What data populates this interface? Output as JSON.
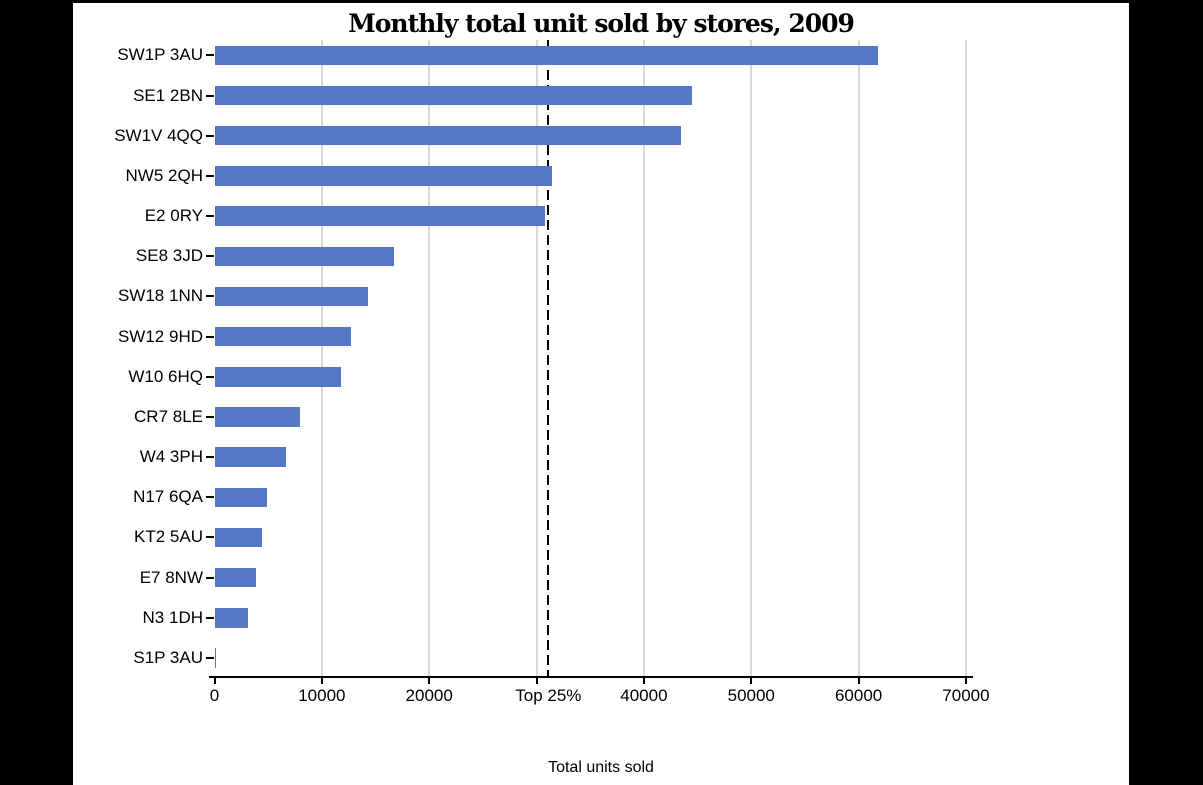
{
  "window": {
    "background": "#ffffff",
    "frame_color": "#000000"
  },
  "chart_data": {
    "type": "bar",
    "orientation": "horizontal",
    "title": "Monthly total unit sold by stores, 2009",
    "xlabel": "Total units sold",
    "categories": [
      "SW1P 3AU",
      "SE1 2BN",
      "SW1V 4QQ",
      "NW5 2QH",
      "E2 0RY",
      "SE8 3JD",
      "SW18 1NN",
      "SW12 9HD",
      "W10 6HQ",
      "CR7 8LE",
      "W4 3PH",
      "N17 6QA",
      "KT2 5AU",
      "E7 8NW",
      "N3 1DH",
      "S1P 3AU"
    ],
    "values": [
      61800,
      44500,
      43500,
      31400,
      30800,
      16700,
      14300,
      12700,
      11800,
      8000,
      6700,
      4900,
      4450,
      3900,
      3150,
      150
    ],
    "xlim": [
      0,
      70000
    ],
    "x_ticks": [
      {
        "value": 0,
        "label": "0"
      },
      {
        "value": 10000,
        "label": "10000"
      },
      {
        "value": 20000,
        "label": "20000"
      },
      {
        "value": 30000,
        "label": "Top 25%",
        "label_at": 31100
      },
      {
        "value": 40000,
        "label": "40000"
      },
      {
        "value": 50000,
        "label": "50000"
      },
      {
        "value": 60000,
        "label": "60000"
      },
      {
        "value": 70000,
        "label": "70000"
      }
    ],
    "reference_line": {
      "value": 31100,
      "label": "Top 25%",
      "style": "dashed",
      "color": "#000000"
    },
    "grid": "vertical",
    "legend": "none",
    "colors": {
      "bar": "#5577c5",
      "gridline": "#d9d9d9",
      "axis": "#000000",
      "text": "#000000"
    }
  }
}
